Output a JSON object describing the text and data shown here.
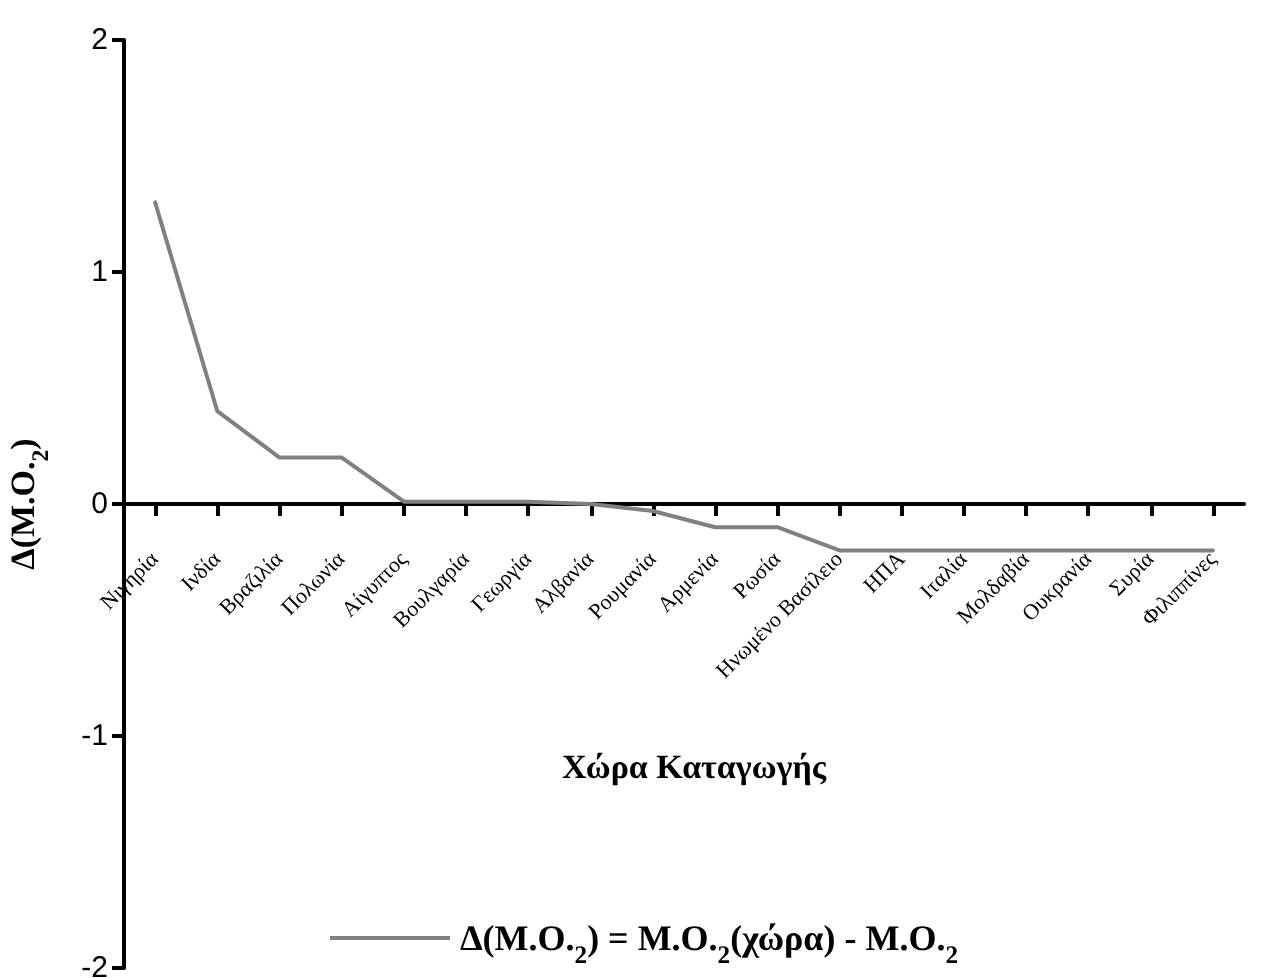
{
  "chart_data": {
    "type": "line",
    "xlabel": "Χώρα Καταγωγής",
    "ylabel": "Δ(M.O.$_{2}$)",
    "categories": [
      "Νιγηρία",
      "Ινδία",
      "Βραζιλία",
      "Πολωνία",
      "Αίγυπτος",
      "Βουλγαρία",
      "Γεωργία",
      "Αλβανία",
      "Ρουμανία",
      "Αρμενία",
      "Ρωσία",
      "Ηνωμένο Βασίλειο",
      "ΗΠΑ",
      "Ιταλία",
      "Μολδαβία",
      "Ουκρανία",
      "Συρία",
      "Φιλιππίνες"
    ],
    "series": [
      {
        "name": "Δ(M.O.$_{2}$) = M.O.$_{2}$(χώρα) - M.O.$_{2}$",
        "color": "#808080",
        "values": [
          1.3,
          0.4,
          0.2,
          0.2,
          0.01,
          0.01,
          0.01,
          0,
          -0.03,
          -0.1,
          -0.1,
          -0.2,
          -0.2,
          -0.2,
          -0.2,
          -0.2,
          -0.2,
          -0.2
        ]
      }
    ],
    "ylim": [
      -2,
      2
    ],
    "yticks": [
      -2,
      -1,
      0,
      1,
      2
    ],
    "grid": false,
    "legend": "bottom",
    "marker": "none",
    "line_style": "solid"
  }
}
